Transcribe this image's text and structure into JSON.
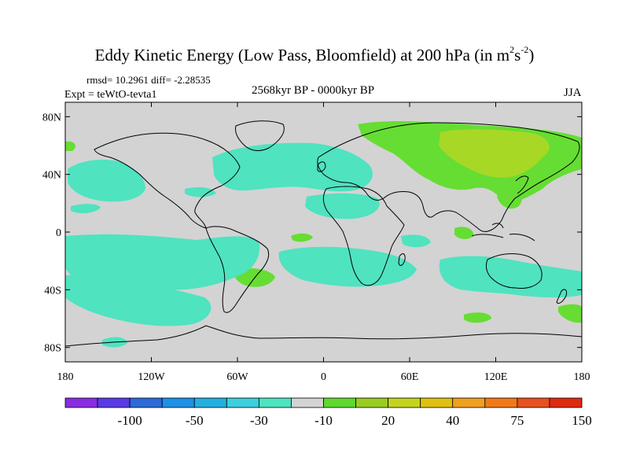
{
  "title": {
    "main": "Eddy Kinetic Energy (Low Pass, Bloomfield) at 200 hPa (in m",
    "exp1": "2",
    "mid": "s",
    "exp2": "-2",
    "close": ")"
  },
  "stats_line": "rmsd= 10.2961 diff= -2.28535",
  "expt_line": "Expt = teWtO-tevta1",
  "period_line": "2568kyr BP - 0000kyr BP",
  "season": "JJA",
  "colors": {
    "land_bg": "#d3d3d3",
    "coast": "#000000",
    "cyan": "#4fe3c0",
    "green": "#66dd33",
    "yellowgreen": "#a8d826",
    "lightblue": "#38c4e0"
  },
  "map": {
    "lon_range": [
      -180,
      180
    ],
    "lat_range": [
      -90,
      90
    ],
    "lat_ticks": [
      {
        "value": 80,
        "label": "80N"
      },
      {
        "value": 40,
        "label": "40N"
      },
      {
        "value": 0,
        "label": "0"
      },
      {
        "value": -40,
        "label": "40S"
      },
      {
        "value": -80,
        "label": "80S"
      }
    ],
    "lon_ticks": [
      {
        "value": -180,
        "label": "180"
      },
      {
        "value": -120,
        "label": "120W"
      },
      {
        "value": -60,
        "label": "60W"
      },
      {
        "value": 0,
        "label": "0"
      },
      {
        "value": 60,
        "label": "60E"
      },
      {
        "value": 120,
        "label": "120E"
      },
      {
        "value": 180,
        "label": "180"
      }
    ]
  },
  "colorbar": {
    "colors": [
      "#8a2be2",
      "#5a3ae6",
      "#2b6ad8",
      "#1e90e6",
      "#22b0e0",
      "#3ccfe0",
      "#4fe3c0",
      "#d3d3d3",
      "#5fd830",
      "#99cc22",
      "#c4d41e",
      "#e0c010",
      "#f0a020",
      "#f07a1a",
      "#e85020",
      "#e02a10"
    ],
    "labels": [
      {
        "after_index": 1,
        "text": "-100"
      },
      {
        "after_index": 3,
        "text": "-50"
      },
      {
        "after_index": 5,
        "text": "-30"
      },
      {
        "after_index": 7,
        "text": "-10"
      },
      {
        "after_index": 9,
        "text": "20"
      },
      {
        "after_index": 11,
        "text": "40"
      },
      {
        "after_index": 13,
        "text": "75"
      },
      {
        "after_index": 15,
        "text": "150"
      }
    ]
  }
}
